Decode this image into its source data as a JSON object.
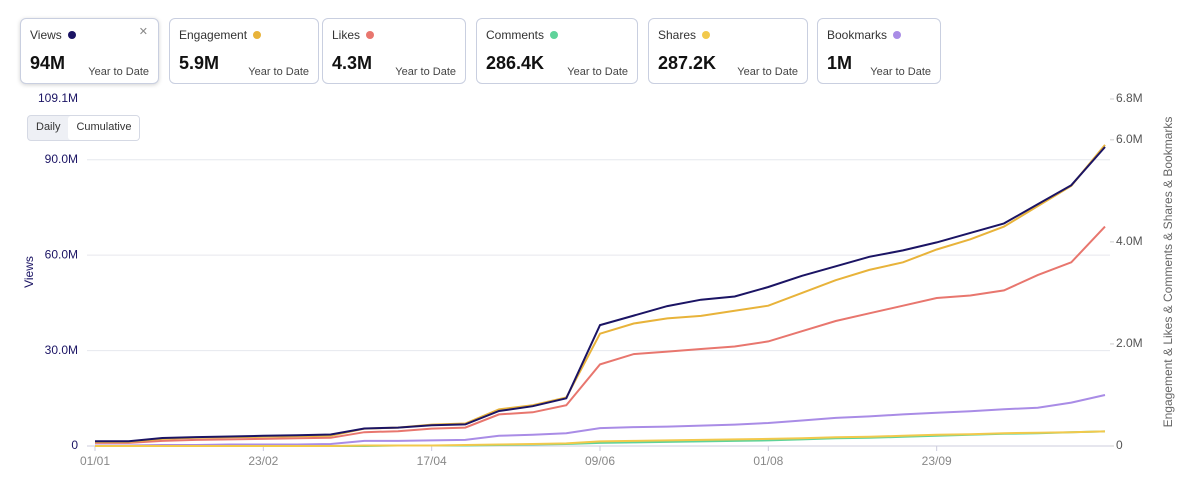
{
  "cards": [
    {
      "name": "Views",
      "value": "94M",
      "period": "Year to Date",
      "color": "#1b1464"
    },
    {
      "name": "Engagement",
      "value": "5.9M",
      "period": "Year to Date",
      "color": "#e8b33a"
    },
    {
      "name": "Likes",
      "value": "4.3M",
      "period": "Year to Date",
      "color": "#e8766e"
    },
    {
      "name": "Comments",
      "value": "286.4K",
      "period": "Year to Date",
      "color": "#5fd39a"
    },
    {
      "name": "Shares",
      "value": "287.2K",
      "period": "Year to Date",
      "color": "#f2c94c"
    },
    {
      "name": "Bookmarks",
      "value": "1M",
      "period": "Year to Date",
      "color": "#a98ce6"
    }
  ],
  "toggle": [
    "Daily",
    "Cumulative"
  ],
  "chart_data": {
    "type": "line",
    "ylabel": "Views",
    "y2label": "Engagement & Likes & Comments & Shares & Bookmarks",
    "categories": [
      "01/01",
      null,
      null,
      null,
      null,
      "23/02",
      null,
      null,
      null,
      null,
      "17/04",
      null,
      null,
      null,
      null,
      "09/06",
      null,
      null,
      null,
      null,
      "01/08",
      null,
      null,
      null,
      null,
      "23/09",
      null,
      null,
      null,
      null,
      null
    ],
    "ylim": [
      0,
      109.1
    ],
    "yticks": [
      0,
      {
        "value": 30,
        "label": "30.0M"
      },
      {
        "value": 60,
        "label": "60.0M"
      },
      {
        "value": 90,
        "label": "90.0M"
      },
      {
        "value": 109.1,
        "label": "109.1M"
      }
    ],
    "y2lim": [
      0,
      6.8
    ],
    "y2ticks": [
      0,
      {
        "value": 2,
        "label": "2.0M"
      },
      {
        "value": 4,
        "label": "4.0M"
      },
      {
        "value": 6,
        "label": "6.0M"
      },
      {
        "value": 6.8,
        "label": "6.8M"
      }
    ],
    "grid": true,
    "series": [
      {
        "name": "Bookmarks",
        "color": "#a98ce6",
        "axis": "y2",
        "values": [
          0.01,
          0.01,
          0.02,
          0.02,
          0.03,
          0.03,
          0.03,
          0.04,
          0.1,
          0.1,
          0.11,
          0.12,
          0.2,
          0.22,
          0.25,
          0.35,
          0.37,
          0.38,
          0.4,
          0.42,
          0.45,
          0.5,
          0.55,
          0.58,
          0.62,
          0.65,
          0.68,
          0.72,
          0.75,
          0.85,
          1.0
        ]
      },
      {
        "name": "Comments",
        "color": "#5fd39a",
        "axis": "y2",
        "values": [
          0,
          0,
          0,
          0,
          0,
          0,
          0,
          0,
          0,
          0.01,
          0.01,
          0.01,
          0.02,
          0.03,
          0.04,
          0.06,
          0.07,
          0.08,
          0.09,
          0.1,
          0.11,
          0.13,
          0.15,
          0.16,
          0.18,
          0.2,
          0.22,
          0.24,
          0.25,
          0.27,
          0.286
        ]
      },
      {
        "name": "Shares",
        "color": "#f2c94c",
        "axis": "y2",
        "values": [
          0,
          0,
          0,
          0,
          0,
          0,
          0,
          0,
          0.01,
          0.01,
          0.01,
          0.02,
          0.03,
          0.04,
          0.05,
          0.09,
          0.1,
          0.11,
          0.12,
          0.13,
          0.14,
          0.15,
          0.17,
          0.18,
          0.2,
          0.22,
          0.23,
          0.25,
          0.26,
          0.27,
          0.287
        ]
      },
      {
        "name": "Likes",
        "color": "#e8766e",
        "axis": "y2",
        "values": [
          0.06,
          0.06,
          0.1,
          0.12,
          0.13,
          0.14,
          0.15,
          0.16,
          0.27,
          0.29,
          0.34,
          0.36,
          0.62,
          0.66,
          0.8,
          1.6,
          1.8,
          1.85,
          1.9,
          1.95,
          2.05,
          2.25,
          2.45,
          2.6,
          2.75,
          2.9,
          2.95,
          3.05,
          3.35,
          3.6,
          4.3
        ]
      },
      {
        "name": "Engagement",
        "color": "#e8b33a",
        "axis": "y2",
        "values": [
          0.08,
          0.08,
          0.14,
          0.16,
          0.17,
          0.18,
          0.19,
          0.2,
          0.34,
          0.36,
          0.42,
          0.44,
          0.72,
          0.8,
          0.95,
          2.2,
          2.4,
          2.5,
          2.55,
          2.65,
          2.75,
          3.0,
          3.25,
          3.45,
          3.6,
          3.85,
          4.05,
          4.3,
          4.7,
          5.1,
          5.9
        ]
      },
      {
        "name": "Views",
        "color": "#1b1464",
        "values": [
          1.5,
          1.5,
          2.5,
          2.8,
          3.0,
          3.2,
          3.4,
          3.6,
          5.5,
          5.8,
          6.5,
          6.8,
          11,
          12.5,
          15,
          38,
          41,
          44,
          46,
          47,
          50,
          53.5,
          56.5,
          59.5,
          61.5,
          64,
          67,
          70,
          76,
          82,
          94
        ]
      }
    ]
  }
}
